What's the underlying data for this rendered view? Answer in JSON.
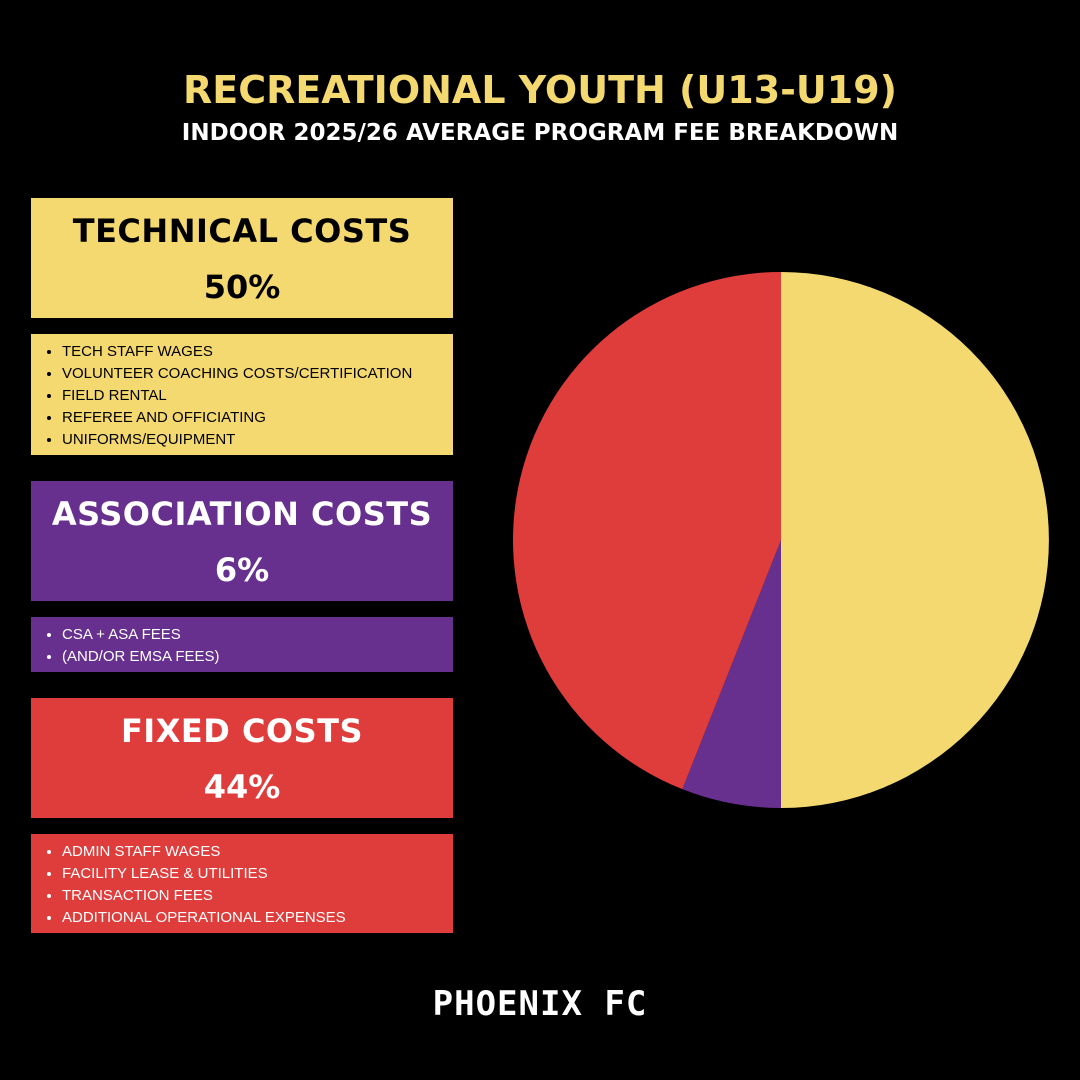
{
  "chart_data": {
    "type": "pie",
    "title": "RECREATIONAL YOUTH (U13-U19)",
    "subtitle": "INDOOR 2025/26 AVERAGE PROGRAM FEE BREAKDOWN",
    "categories": [
      "TECHNICAL COSTS",
      "ASSOCIATION COSTS",
      "FIXED COSTS"
    ],
    "values": [
      50,
      6,
      44
    ],
    "value_labels": [
      "50%",
      "6%",
      "44%"
    ],
    "colors": [
      "#f4d870",
      "#67308f",
      "#df3d3b"
    ],
    "details": [
      [
        "TECH STAFF WAGES",
        "VOLUNTEER COACHING COSTS/CERTIFICATION",
        "FIELD RENTAL",
        "REFEREE AND OFFICIATING",
        "UNIFORMS/EQUIPMENT"
      ],
      [
        "CSA + ASA FEES",
        "(AND/OR EMSA FEES)"
      ],
      [
        "ADMIN STAFF WAGES",
        "FACILITY LEASE & UTILITIES",
        "TRANSACTION FEES",
        "ADDITIONAL OPERATIONAL EXPENSES"
      ]
    ]
  },
  "brand": "PHOENIX FC"
}
